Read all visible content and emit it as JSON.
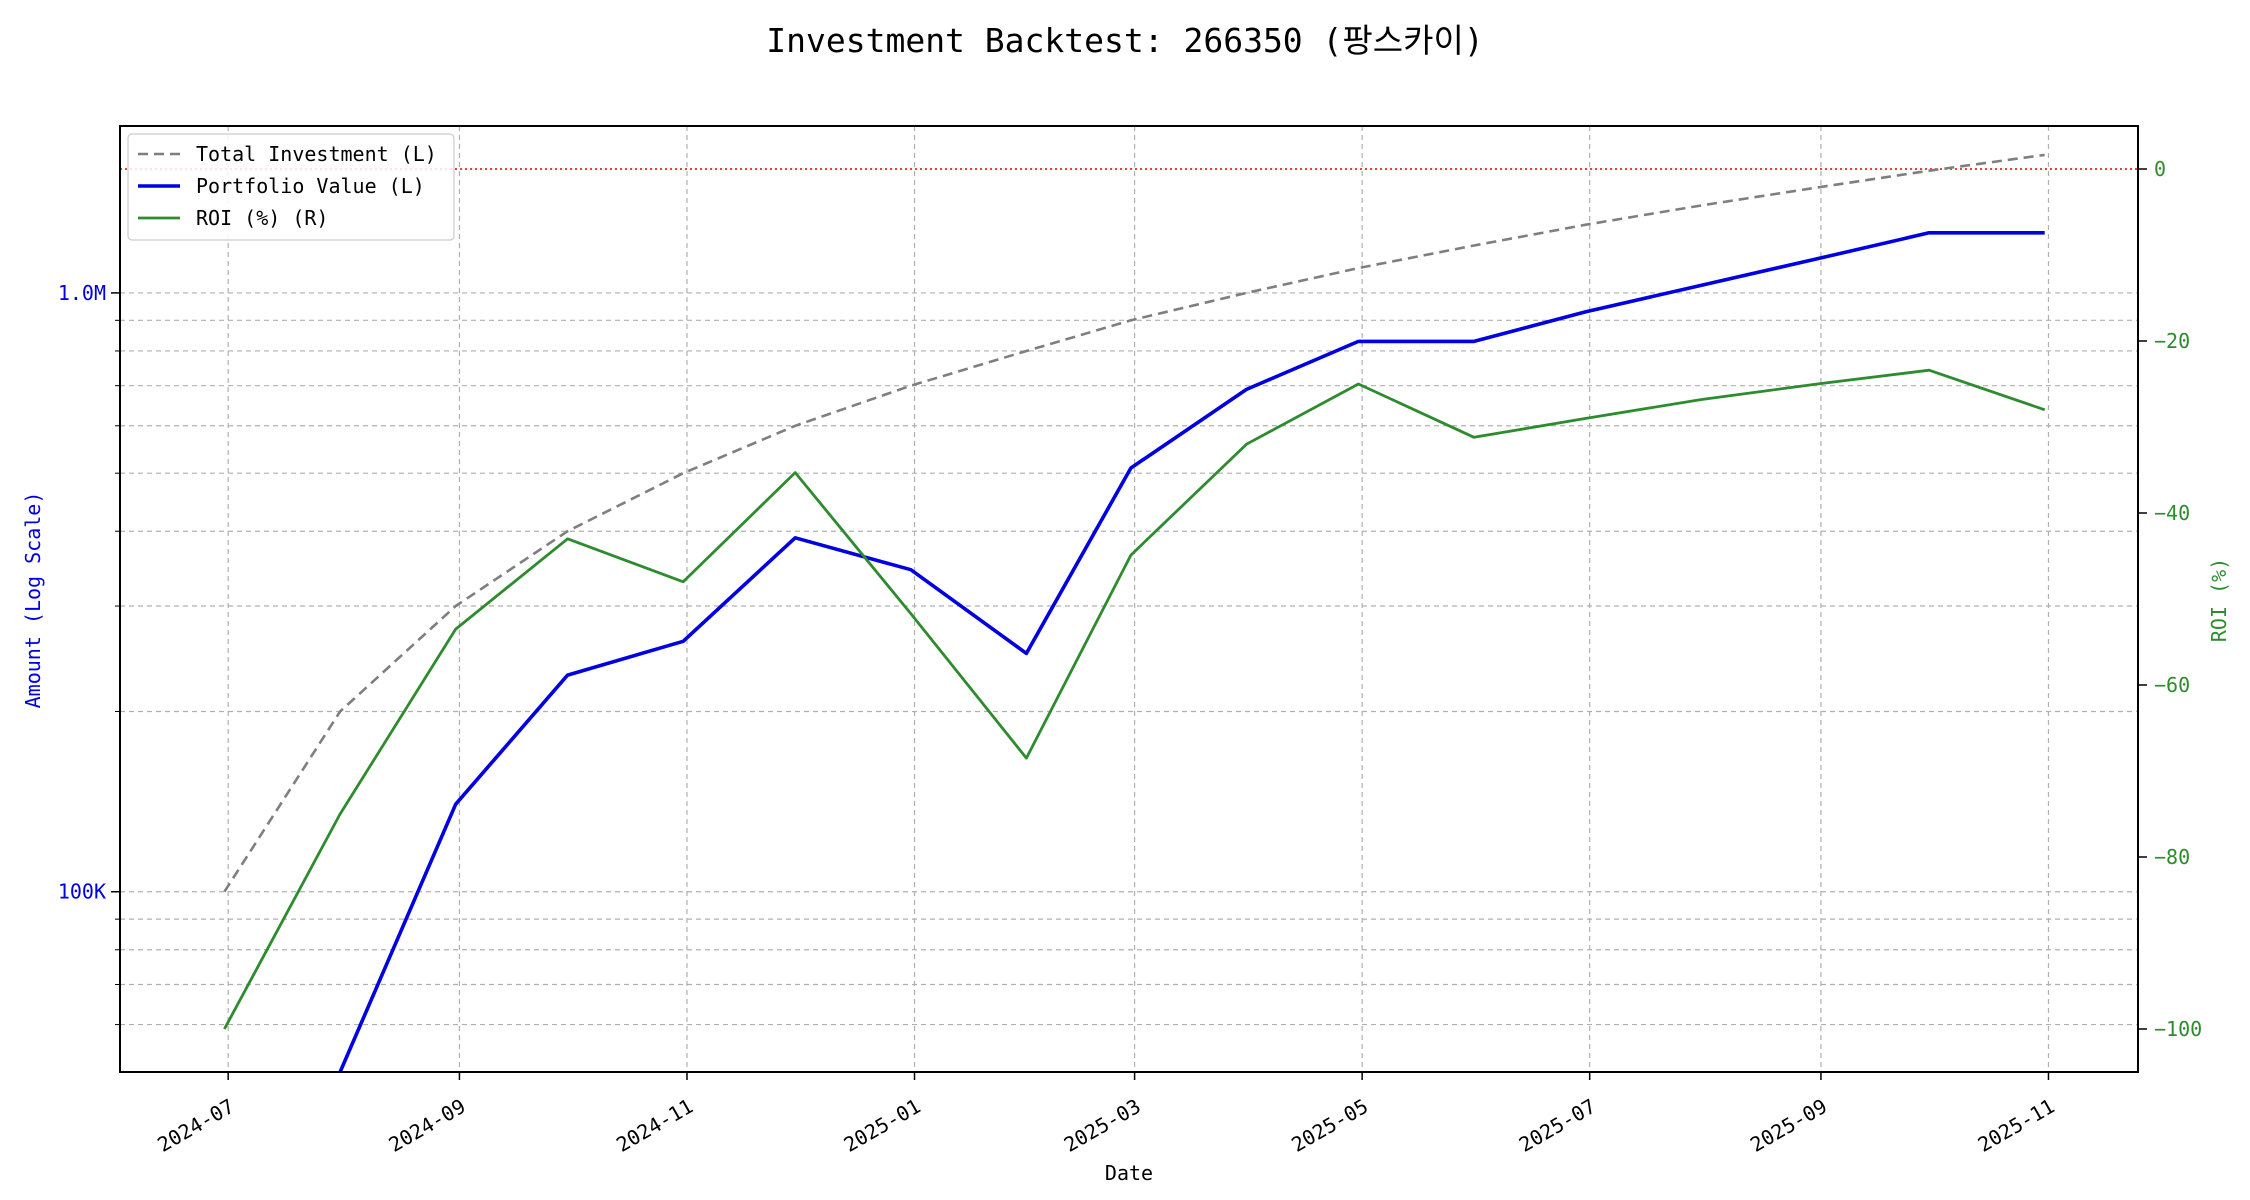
{
  "chart_data": {
    "type": "line",
    "title": "Investment Backtest: 266350 (팡스카이)",
    "xlabel": "Date",
    "ylabel_left": "Amount (Log Scale)",
    "ylabel_right": "ROI (%)",
    "left_scale": "log",
    "left_ylim": [
      50000,
      1900000
    ],
    "right_ylim": [
      -105,
      5
    ],
    "xlim": [
      "2024-06-02",
      "2025-11-25"
    ],
    "grid": true,
    "legend_position": "top-left",
    "x_ticks": [
      "2024-07-01",
      "2024-09-01",
      "2024-11-01",
      "2025-01-01",
      "2025-03-01",
      "2025-05-01",
      "2025-07-01",
      "2025-09-01",
      "2025-11-01"
    ],
    "x_tick_labels": [
      "2024-07",
      "2024-09",
      "2024-11",
      "2025-01",
      "2025-03",
      "2025-05",
      "2025-07",
      "2025-09",
      "2025-11"
    ],
    "left_ticks": [
      100000,
      1000000
    ],
    "left_tick_labels": [
      "100K",
      "1.0M"
    ],
    "left_minor_grid": [
      60000,
      70000,
      80000,
      90000,
      200000,
      300000,
      400000,
      500000,
      600000,
      700000,
      800000,
      900000
    ],
    "right_ticks": [
      0,
      -20,
      -40,
      -60,
      -80,
      -100
    ],
    "right_tick_labels": [
      "0",
      "−20",
      "−40",
      "−60",
      "−80",
      "−100"
    ],
    "reference_line": {
      "axis": "right",
      "value": 0,
      "color": "#e00000"
    },
    "series": [
      {
        "name": "Total Investment (L)",
        "axis": "left",
        "color": "#7f7f7f",
        "style": "dashed",
        "x": [
          "2024-06-30",
          "2024-07-31",
          "2024-08-31",
          "2024-09-30",
          "2024-10-31",
          "2024-11-30",
          "2024-12-31",
          "2025-01-31",
          "2025-02-28",
          "2025-03-31",
          "2025-04-30",
          "2025-05-31",
          "2025-06-30",
          "2025-07-31",
          "2025-08-31",
          "2025-09-30",
          "2025-10-31"
        ],
        "values": [
          100000,
          200000,
          300000,
          400000,
          500000,
          600000,
          700000,
          800000,
          900000,
          1000000,
          1100000,
          1200000,
          1300000,
          1400000,
          1500000,
          1600000,
          1700000
        ]
      },
      {
        "name": "Portfolio Value (L)",
        "axis": "left",
        "color": "#0000e0",
        "style": "solid",
        "x": [
          "2024-07-31",
          "2024-07-31",
          "2024-08-31",
          "2024-09-30",
          "2024-10-31",
          "2024-11-30",
          "2024-12-31",
          "2025-01-31",
          "2025-02-28",
          "2025-03-31",
          "2025-04-30",
          "2025-05-31",
          "2025-06-30",
          "2025-07-31",
          "2025-08-31",
          "2025-09-30",
          "2025-10-31"
        ],
        "values": [
          42000,
          50000,
          140000,
          230000,
          262000,
          390000,
          345000,
          250000,
          510000,
          690000,
          830000,
          830000,
          930000,
          1030000,
          1140000,
          1260000,
          1260000
        ]
      },
      {
        "name": "ROI (%) (R)",
        "axis": "right",
        "color": "#2e8b2e",
        "style": "solid",
        "x": [
          "2024-06-30",
          "2024-07-31",
          "2024-08-31",
          "2024-09-30",
          "2024-10-31",
          "2024-11-30",
          "2024-12-31",
          "2025-01-31",
          "2025-02-28",
          "2025-03-31",
          "2025-04-30",
          "2025-05-31",
          "2025-06-30",
          "2025-07-31",
          "2025-08-31",
          "2025-09-30",
          "2025-10-31"
        ],
        "values": [
          -100,
          -75,
          -53.5,
          -43,
          -48,
          -35.3,
          -51.7,
          -68.5,
          -44.9,
          -32,
          -25,
          -31.2,
          -29,
          -26.8,
          -25,
          -23.4,
          -28
        ]
      }
    ]
  }
}
